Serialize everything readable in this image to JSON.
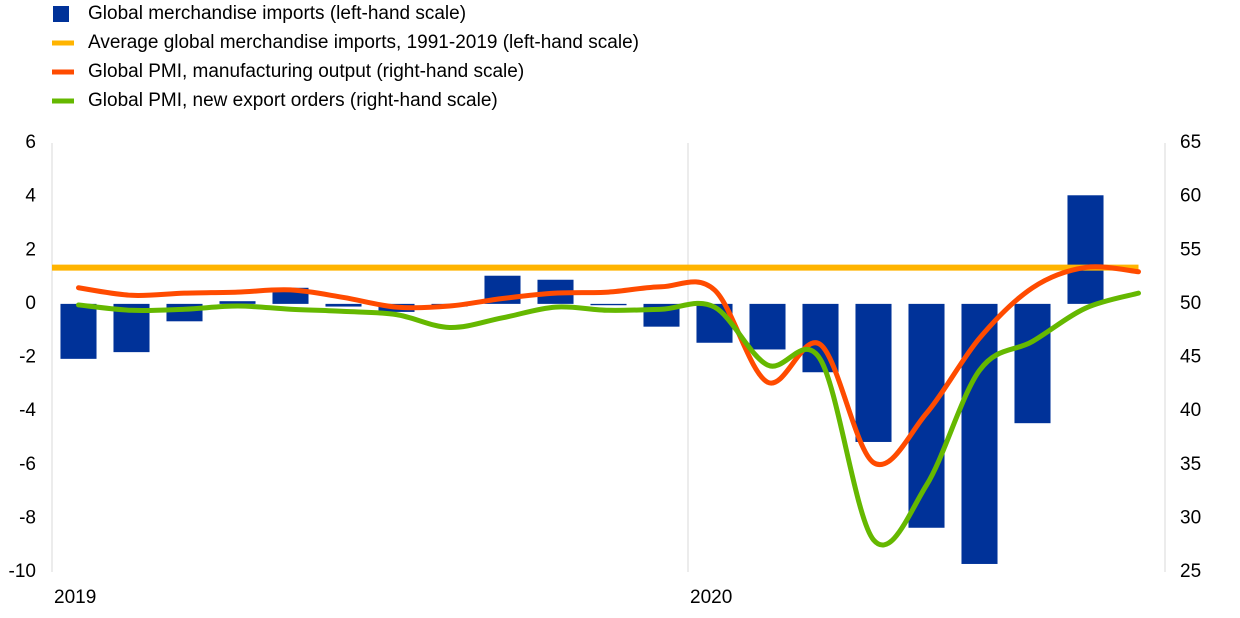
{
  "chart_data": {
    "type": "bar-line",
    "categories": [
      "2019",
      null,
      null,
      null,
      null,
      null,
      null,
      null,
      null,
      null,
      null,
      null,
      "2020",
      null,
      null,
      null,
      null,
      null,
      null,
      null,
      null
    ],
    "series": [
      {
        "name": "Global merchandise imports (left-hand scale)",
        "type": "bar",
        "color": "#003299",
        "values": [
          -2.05,
          -1.8,
          -0.65,
          0.1,
          0.6,
          -0.1,
          -0.3,
          -0.1,
          1.05,
          0.9,
          -0.05,
          -0.85,
          -1.45,
          -1.7,
          -2.55,
          -5.15,
          -8.35,
          -9.7,
          -4.45,
          4.05,
          null
        ]
      },
      {
        "name": "Average global merchandise imports, 1991-2019 (left-hand scale)",
        "type": "hline",
        "color": "#ffb400",
        "value": 1.35
      },
      {
        "name": "Global PMI, manufacturing output (right-hand scale)",
        "type": "line",
        "color": "#ff4b00",
        "axis": "y2",
        "values": [
          51.5,
          50.8,
          51.0,
          51.1,
          51.3,
          50.6,
          49.7,
          49.8,
          50.5,
          51.0,
          51.1,
          51.6,
          51.3,
          42.7,
          46.2,
          35.2,
          39.8,
          46.8,
          51.5,
          53.4,
          53.0
        ]
      },
      {
        "name": "Global PMI, new export orders (right-hand scale)",
        "type": "line",
        "color": "#65b800",
        "axis": "y2",
        "values": [
          49.9,
          49.4,
          49.5,
          49.8,
          49.5,
          49.3,
          49.0,
          47.8,
          48.7,
          49.7,
          49.4,
          49.5,
          49.7,
          44.3,
          44.8,
          28.0,
          33.1,
          43.8,
          46.5,
          49.6,
          51.0
        ]
      }
    ],
    "ylim": [
      -10,
      6
    ],
    "yticks": [
      -10,
      -8,
      -6,
      -4,
      -2,
      0,
      2,
      4,
      6
    ],
    "y2lim": [
      25,
      65
    ],
    "y2ticks": [
      25,
      30,
      35,
      40,
      45,
      50,
      55,
      60,
      65
    ],
    "legend": "top-left"
  }
}
